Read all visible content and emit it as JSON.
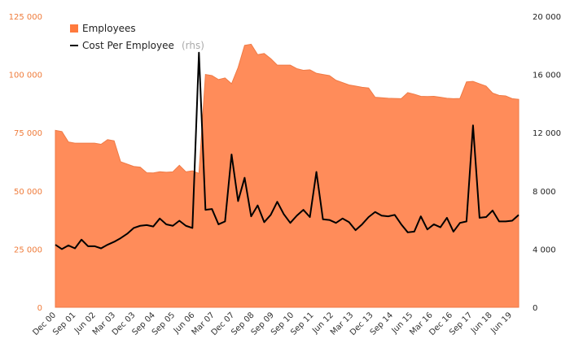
{
  "chart_data": {
    "type": "area+line",
    "title": "",
    "legend": {
      "placement": "top-left",
      "employees_label": "Employees",
      "cost_label": "Cost Per Employee",
      "cost_note": "(rhs)"
    },
    "colors": {
      "area": "#ff8c5a",
      "area_legend": "#ff7a3d",
      "line": "#000000",
      "left_axis_text": "#ef7b3a"
    },
    "x_labels": [
      "Dec 00",
      "Sep 01",
      "Jun 02",
      "Mar 03",
      "Dec 03",
      "Sep 04",
      "Sep 05",
      "Jun 06",
      "Mar 07",
      "Dec 07",
      "Sep 08",
      "Sep 09",
      "Sep 10",
      "Sep 11",
      "Jun 12",
      "Mar 13",
      "Dec 13",
      "Sep 14",
      "Jun 15",
      "Mar 16",
      "Dec 16",
      "Sep 17",
      "Jun 18",
      "Jun 19"
    ],
    "y_left": {
      "min": 0,
      "max": 125000,
      "ticks": [
        "0",
        "25 000",
        "50 000",
        "75 000",
        "100 000",
        "125 000"
      ]
    },
    "y_right": {
      "min": 0,
      "max": 20000,
      "ticks": [
        "0",
        "4 000",
        "8 000",
        "12 000",
        "16 000",
        "20 000"
      ]
    },
    "series": [
      {
        "name": "Employees",
        "axis": "left",
        "type": "area",
        "values": [
          76000,
          75500,
          71000,
          70500,
          70500,
          70500,
          70500,
          70000,
          72000,
          71500,
          62500,
          61500,
          60500,
          60200,
          57800,
          57700,
          58200,
          58000,
          58200,
          61000,
          58200,
          58600,
          57500,
          100000,
          99500,
          97800,
          98500,
          96000,
          103000,
          112500,
          113000,
          108500,
          109000,
          106800,
          104000,
          104000,
          104000,
          102500,
          101800,
          102000,
          100500,
          100000,
          99500,
          97500,
          96500,
          95500,
          95000,
          94500,
          94200,
          90200,
          90000,
          89800,
          89700,
          89600,
          92200,
          91500,
          90600,
          90500,
          90600,
          90200,
          89800,
          89600,
          89700,
          96800,
          97000,
          96000,
          95000,
          92000,
          91000,
          90800,
          89600,
          89300
        ]
      },
      {
        "name": "Cost Per Employee",
        "axis": "right",
        "type": "line",
        "values": [
          4300,
          4000,
          4250,
          4050,
          4650,
          4200,
          4200,
          4050,
          4300,
          4500,
          4750,
          5050,
          5450,
          5600,
          5650,
          5550,
          6100,
          5700,
          5600,
          5950,
          5600,
          5450,
          17500,
          6700,
          6750,
          5700,
          5900,
          10500,
          7300,
          8900,
          6250,
          7000,
          5850,
          6350,
          7250,
          6400,
          5800,
          6300,
          6700,
          6200,
          9300,
          6050,
          6000,
          5800,
          6100,
          5850,
          5300,
          5700,
          6200,
          6550,
          6300,
          6250,
          6350,
          5700,
          5150,
          5200,
          6250,
          5350,
          5700,
          5500,
          6150,
          5200,
          5800,
          5900,
          12500,
          6150,
          6200,
          6650,
          5900,
          5900,
          5950,
          6350
        ]
      }
    ]
  }
}
